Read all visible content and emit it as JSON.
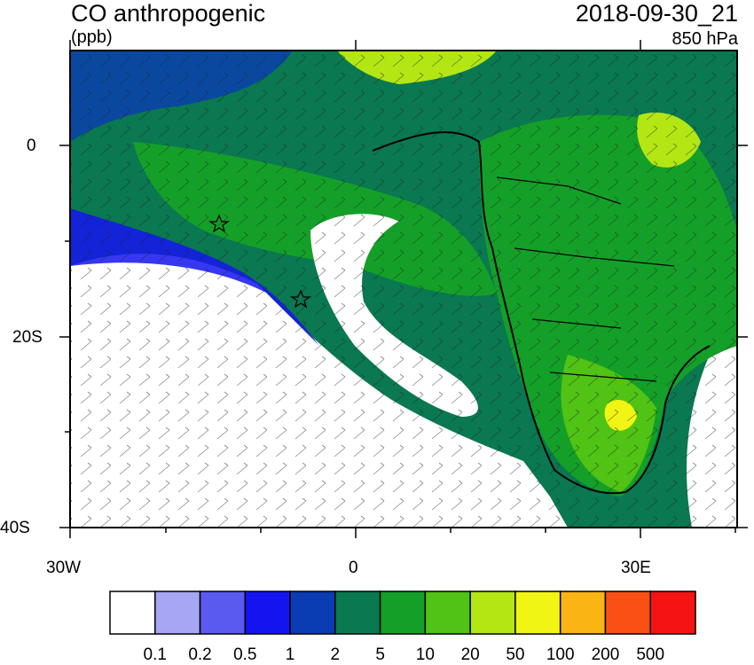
{
  "header": {
    "title": "CO anthropogenic",
    "units": "(ppb)",
    "datetime": "2018-09-30_21",
    "level": "850 hPa"
  },
  "axes": {
    "x_ticks": [
      "30W",
      "0",
      "30E"
    ],
    "y_ticks": [
      "0",
      "20S",
      "40S"
    ]
  },
  "colorbar": {
    "labels": [
      "0.1",
      "0.2",
      "0.5",
      "1",
      "2",
      "5",
      "10",
      "20",
      "50",
      "100",
      "200",
      "500"
    ],
    "colors": [
      "#ffffff",
      "#a6a6f5",
      "#5a5af0",
      "#1414f0",
      "#0a3cb4",
      "#0a7850",
      "#14a028",
      "#50c314",
      "#b4e614",
      "#f0f514",
      "#fab414",
      "#fa5014",
      "#f51414"
    ]
  },
  "markers": [
    "star",
    "star"
  ],
  "palette": {
    "ocean_clean": "#ffffff",
    "border": "#000000"
  }
}
